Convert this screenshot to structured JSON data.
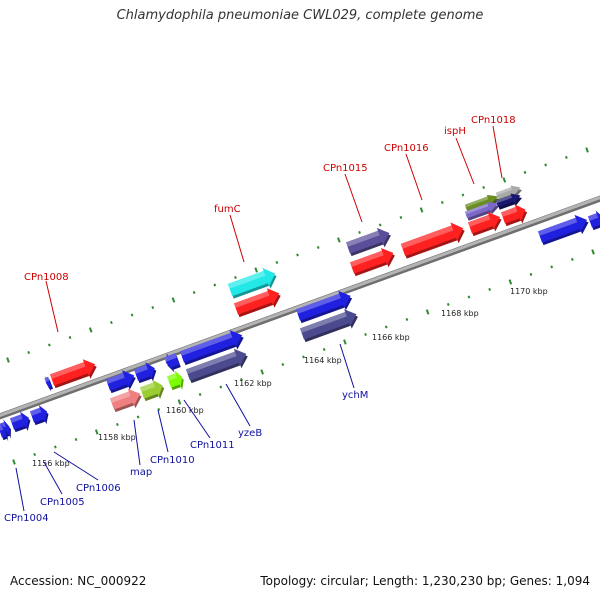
{
  "title": "Chlamydophila pneumoniae CWL029, complete genome",
  "accession_text": "Accession: NC_000922",
  "genome_info_text": "Topology: circular; Length: 1,230,230 bp; Genes: 1,094",
  "colors": {
    "backbone": "#8a8a8a",
    "tick": "#2e8b2e",
    "label_top": "#cc0000",
    "label_bottom": "#1010a0",
    "kbp_text": "#222222"
  },
  "kbp_ticks": [
    {
      "label": "1156 kbp",
      "kbp": 1156
    },
    {
      "label": "1158 kbp",
      "kbp": 1158
    },
    {
      "label": "1160 kbp",
      "kbp": 1160
    },
    {
      "label": "1162 kbp",
      "kbp": 1162
    },
    {
      "label": "1164 kbp",
      "kbp": 1164
    },
    {
      "label": "1166 kbp",
      "kbp": 1166
    },
    {
      "label": "1168 kbp",
      "kbp": 1168
    },
    {
      "label": "1170 kbp",
      "kbp": 1170
    }
  ],
  "genes": [
    {
      "label": "CPn1008",
      "color": "#ff2020",
      "strand": "top"
    },
    {
      "label": "fumC",
      "color": "#22e8e8",
      "strand": "top"
    },
    {
      "label": "",
      "color": "#ff2020",
      "strand": "top"
    },
    {
      "label": "CPn1015",
      "color": "#5a4e9a",
      "strand": "top"
    },
    {
      "label": "",
      "color": "#ff2020",
      "strand": "top"
    },
    {
      "label": "CPn1016",
      "color": "#ff2020",
      "strand": "top"
    },
    {
      "label": "ispH",
      "color": "#6b8e23",
      "strand": "top"
    },
    {
      "label": "",
      "color": "#7b68c8",
      "strand": "top"
    },
    {
      "label": "CPn1018",
      "color": "#a9a9a9",
      "strand": "top"
    },
    {
      "label": "",
      "color": "#191970",
      "strand": "top"
    },
    {
      "label": "",
      "color": "#ff2020",
      "strand": "top"
    },
    {
      "label": "",
      "color": "#ff2020",
      "strand": "top"
    },
    {
      "label": "",
      "color": "#2020e0",
      "strand": "bottom"
    },
    {
      "label": "",
      "color": "#2020e0",
      "strand": "bottom"
    },
    {
      "label": "CPn1004",
      "color": "#2020e0",
      "strand": "bottom"
    },
    {
      "label": "CPn1005",
      "color": "#2020e0",
      "strand": "bottom"
    },
    {
      "label": "CPn1006",
      "color": "#2020e0",
      "strand": "bottom"
    },
    {
      "label": "",
      "color": "#2020e0",
      "strand": "bottom"
    },
    {
      "label": "",
      "color": "#2020e0",
      "strand": "bottom"
    },
    {
      "label": "map",
      "color": "#f08080",
      "strand": "bottom"
    },
    {
      "label": "CPn1010",
      "color": "#9acd32",
      "strand": "bottom"
    },
    {
      "label": "CPn1011",
      "color": "#7cfc00",
      "strand": "bottom"
    },
    {
      "label": "",
      "color": "#2020e0",
      "strand": "bottom"
    },
    {
      "label": "",
      "color": "#2020e0",
      "strand": "bottom"
    },
    {
      "label": "yzeB",
      "color": "#4b4a8e",
      "strand": "bottom"
    },
    {
      "label": "",
      "color": "#2020e0",
      "strand": "bottom"
    },
    {
      "label": "ychM",
      "color": "#4b4a8e",
      "strand": "bottom"
    },
    {
      "label": "",
      "color": "#2020e0",
      "strand": "bottom"
    },
    {
      "label": "",
      "color": "#2020e0",
      "strand": "bottom"
    }
  ]
}
